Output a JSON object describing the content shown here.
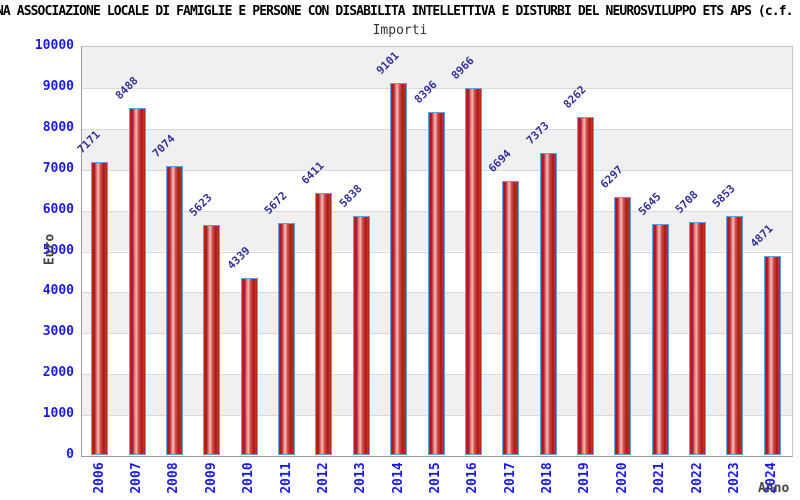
{
  "header": {
    "title": "NA ASSOCIAZIONE LOCALE DI FAMIGLIE E PERSONE CON DISABILITA INTELLETTIVA E DISTURBI DEL NEUROSVILUPPO ETS APS (c.f.",
    "subtitle": "Importi"
  },
  "chart_data": {
    "type": "bar",
    "title": "Importi",
    "categories": [
      "2006",
      "2007",
      "2008",
      "2009",
      "2010",
      "2011",
      "2012",
      "2013",
      "2014",
      "2015",
      "2016",
      "2017",
      "2018",
      "2019",
      "2020",
      "2021",
      "2022",
      "2023",
      "2024"
    ],
    "values": [
      7171,
      8488,
      7074,
      5623,
      4339,
      5672,
      6411,
      5838,
      9101,
      8396,
      8966,
      6694,
      7373,
      8262,
      6297,
      5645,
      5708,
      5853,
      4871
    ],
    "xlabel": "Anno",
    "ylabel": "Euro",
    "ylim": [
      0,
      10000
    ],
    "ytick_step": 1000,
    "ytick_labels": [
      "0",
      "1000",
      "2000",
      "3000",
      "4000",
      "5000",
      "6000",
      "7000",
      "8000",
      "9000",
      "10000"
    ],
    "grid": "horizontal-bands",
    "legend_position": "none",
    "colors": {
      "bar_fill_main": "#c53030",
      "bar_fill_dark": "#9e1414",
      "bar_fill_highlight": "#f6bcbc",
      "bar_border": "#5aa2e8",
      "axis_label_blue": "#1a1ae6",
      "value_label_navy": "#32329b",
      "band_gray": "#f0f0f0",
      "band_white": "#ffffff",
      "axis_title_gray": "#444444",
      "title_black": "#000000",
      "subtitle_gray": "#333333"
    }
  }
}
